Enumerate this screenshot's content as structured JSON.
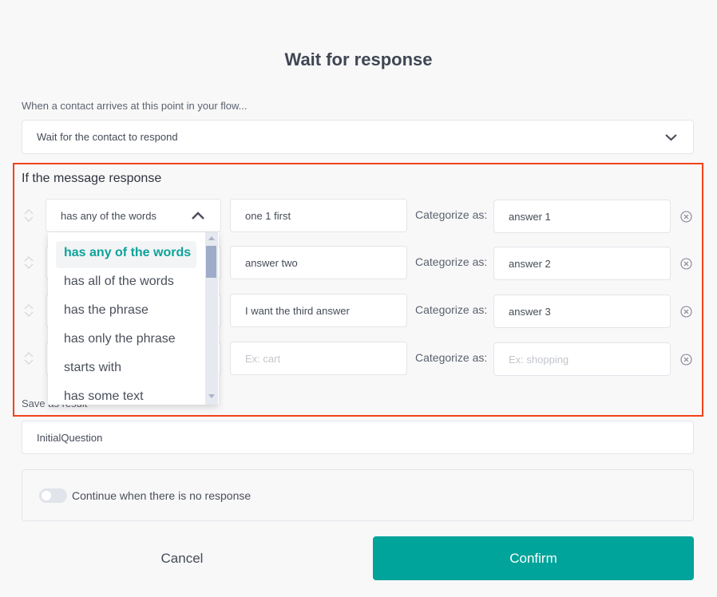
{
  "modal": {
    "title": "Wait for response",
    "intro_label": "When a contact arrives at this point in your flow...",
    "wait_select": {
      "value": "Wait for the contact to respond",
      "icon": "chevron-down-icon"
    },
    "rules_heading": "If the message response",
    "rules": [
      {
        "operator": "has any of the words",
        "value": "one 1 first",
        "value_placeholder": "",
        "category_label": "Categorize as:",
        "category": "answer 1",
        "category_placeholder": ""
      },
      {
        "operator": "",
        "value": "answer two",
        "value_placeholder": "",
        "category_label": "Categorize as:",
        "category": "answer 2",
        "category_placeholder": ""
      },
      {
        "operator": "",
        "value": "I want the third answer",
        "value_placeholder": "",
        "category_label": "Categorize as:",
        "category": "answer 3",
        "category_placeholder": ""
      },
      {
        "operator": "",
        "value": "",
        "value_placeholder": "Ex: cart",
        "category_label": "Categorize as:",
        "category": "",
        "category_placeholder": "Ex: shopping"
      }
    ],
    "operator_options": [
      "has any of the words",
      "has all of the words",
      "has the phrase",
      "has only the phrase",
      "starts with",
      "has some text"
    ],
    "selected_operator": "has any of the words",
    "save_label": "Save as result",
    "save_value": "InitialQuestion",
    "continue_toggle": {
      "label": "Continue when there is no response",
      "on": false
    },
    "cancel_label": "Cancel",
    "confirm_label": "Confirm",
    "colors": {
      "accent": "#00a49a",
      "highlight_border": "#f2421b"
    }
  }
}
